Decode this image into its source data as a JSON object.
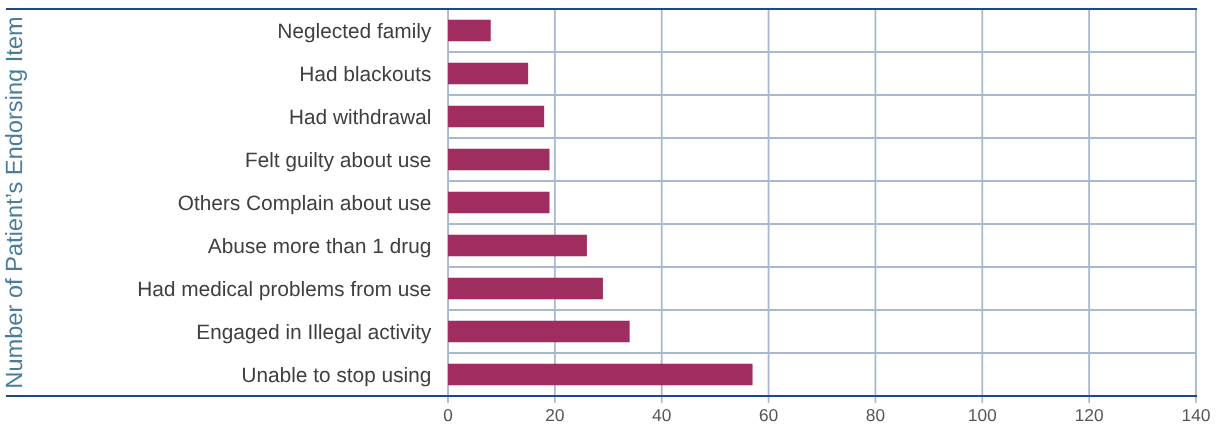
{
  "chart_data": {
    "type": "bar",
    "orientation": "horizontal",
    "ylabel": "Number of Patient’s Endorsing Item",
    "categories": [
      "Neglected family",
      "Had blackouts",
      "Had withdrawal",
      "Felt guilty about use",
      "Others Complain about use",
      "Abuse more than 1 drug",
      "Had medical problems from use",
      "Engaged in Illegal activity",
      "Unable to stop using"
    ],
    "values": [
      8,
      15,
      18,
      19,
      19,
      26,
      29,
      34,
      57
    ],
    "color": "#a02d60",
    "xlim": [
      0,
      140
    ],
    "xticks": [
      0,
      20,
      40,
      60,
      80,
      100,
      120,
      140
    ],
    "grid": true
  }
}
